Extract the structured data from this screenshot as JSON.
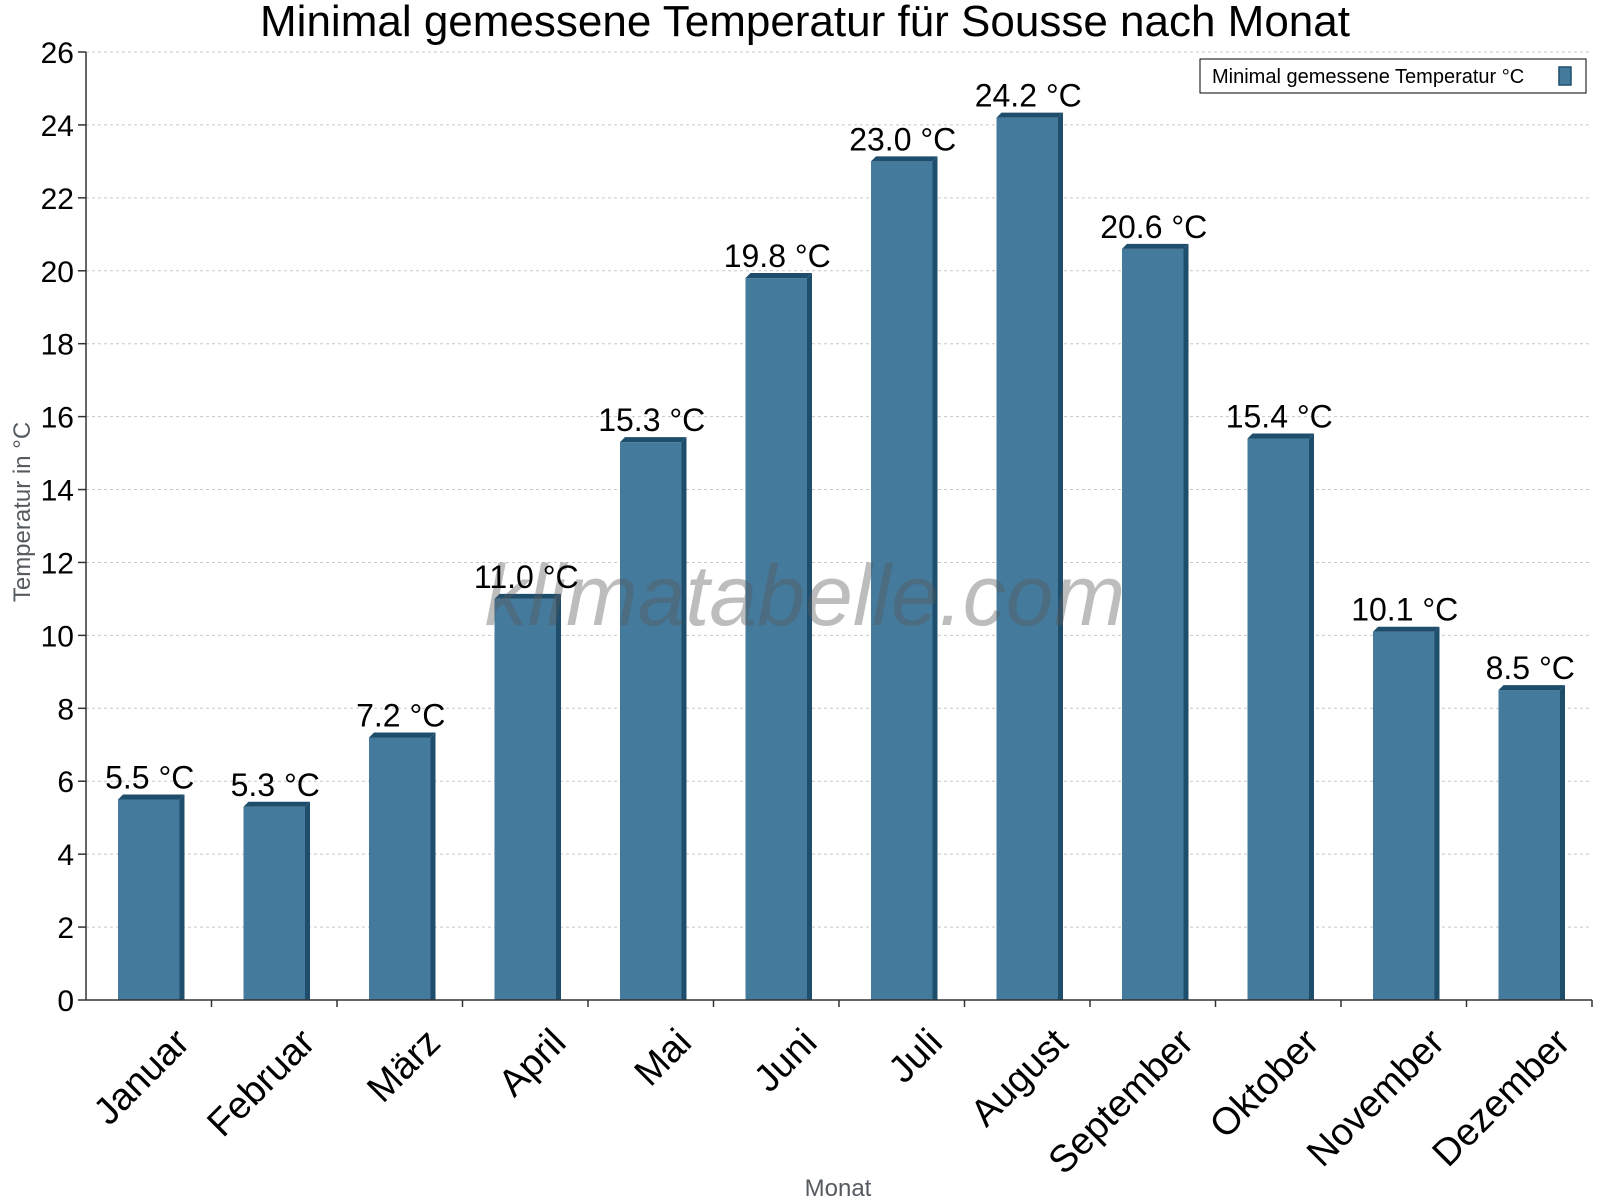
{
  "chart_data": {
    "type": "bar",
    "title": "Minimal gemessene Temperatur für Sousse nach Monat",
    "xlabel": "Monat",
    "ylabel": "Temperatur in °C",
    "categories": [
      "Januar",
      "Februar",
      "März",
      "April",
      "Mai",
      "Juni",
      "Juli",
      "August",
      "September",
      "Oktober",
      "November",
      "Dezember"
    ],
    "series": [
      {
        "name": "Minimal gemessene Temperatur °C",
        "values": [
          5.5,
          5.3,
          7.2,
          11.0,
          15.3,
          19.8,
          23.0,
          24.2,
          20.6,
          15.4,
          10.1,
          8.5
        ]
      }
    ],
    "value_suffix": " °C",
    "ylim": [
      0,
      26
    ],
    "yticks": [
      0,
      2,
      4,
      6,
      8,
      10,
      12,
      14,
      16,
      18,
      20,
      22,
      24,
      26
    ],
    "grid": true,
    "legend_position": "top-right",
    "watermark": "klimatabelle.com",
    "colors": {
      "bar": "#447a9c",
      "bar_side": "#1f4e6c",
      "bar_top": "#1f4e6c"
    }
  }
}
